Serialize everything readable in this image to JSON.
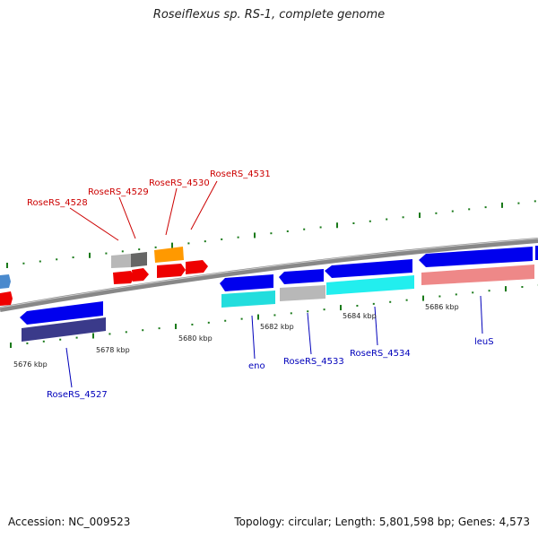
{
  "title": "Roseiflexus sp. RS-1, complete genome",
  "footer": {
    "accession": "Accession: NC_009523",
    "topology": "Topology: circular; Length: 5,801,598 bp; Genes: 4,573"
  },
  "kbp_labels": [
    "5676 kbp",
    "5678 kbp",
    "5680 kbp",
    "5682 kbp",
    "5684 kbp",
    "5686 kbp"
  ],
  "gene_labels": {
    "top": [
      "RoseRS_4528",
      "RoseRS_4529",
      "RoseRS_4530",
      "RoseRS_4531"
    ],
    "bottom": [
      "RoseRS_4527",
      "eno",
      "RoseRS_4533",
      "RoseRS_4534",
      "leuS"
    ]
  },
  "colors": {
    "label_top": "#cc0000",
    "label_bottom": "#0000bb",
    "backbone": "#888888",
    "ticks": "#1a7a1a",
    "cds_blue": "#0000ee",
    "red": "#ee0000",
    "orange": "#ff9900",
    "grey": "#b8b8b8",
    "darkgrey": "#666666",
    "cyan": "#22dddd",
    "teal": "#11bbbb",
    "navy": "#3a3a8a",
    "salmon": "#ee8888",
    "steelblue": "#4a8acd"
  }
}
